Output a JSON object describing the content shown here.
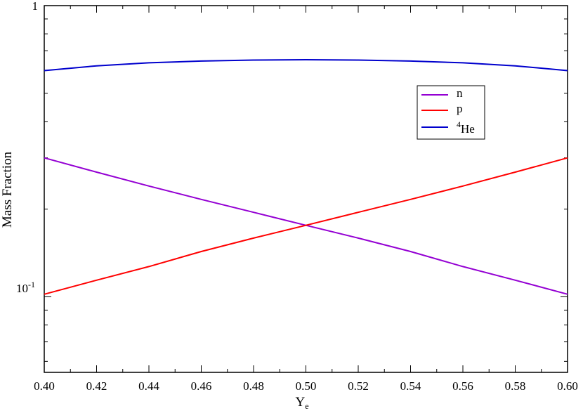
{
  "chart_data": {
    "type": "line",
    "xlabel_main": "Y",
    "xlabel_sub": "e",
    "ylabel": "Mass Fraction",
    "xlim": [
      0.4,
      0.6
    ],
    "ylim": [
      0.055,
      1.0
    ],
    "yscale": "log",
    "grid": false,
    "legend_position": "upper-right",
    "x_ticks": [
      "0.40",
      "0.42",
      "0.44",
      "0.46",
      "0.48",
      "0.50",
      "0.52",
      "0.54",
      "0.56",
      "0.58",
      "0.60"
    ],
    "y_tick_labels": {
      "top": "1",
      "bottom_base": "10",
      "bottom_exp": "-1"
    },
    "x": [
      0.4,
      0.42,
      0.44,
      0.46,
      0.48,
      0.5,
      0.52,
      0.54,
      0.56,
      0.58,
      0.6
    ],
    "series": [
      {
        "name": "n",
        "legend_label": "n",
        "color": "#9400d3",
        "values": [
          0.3,
          0.268,
          0.24,
          0.216,
          0.195,
          0.176,
          0.159,
          0.143,
          0.127,
          0.114,
          0.102
        ]
      },
      {
        "name": "p",
        "legend_label": "p",
        "color": "#ff0000",
        "values": [
          0.102,
          0.114,
          0.127,
          0.143,
          0.159,
          0.176,
          0.195,
          0.216,
          0.24,
          0.268,
          0.3
        ]
      },
      {
        "name": "4He",
        "legend_sup": "4",
        "legend_main": "He",
        "color": "#0000cd",
        "values": [
          0.598,
          0.621,
          0.636,
          0.645,
          0.65,
          0.652,
          0.65,
          0.645,
          0.636,
          0.621,
          0.598
        ]
      }
    ]
  }
}
